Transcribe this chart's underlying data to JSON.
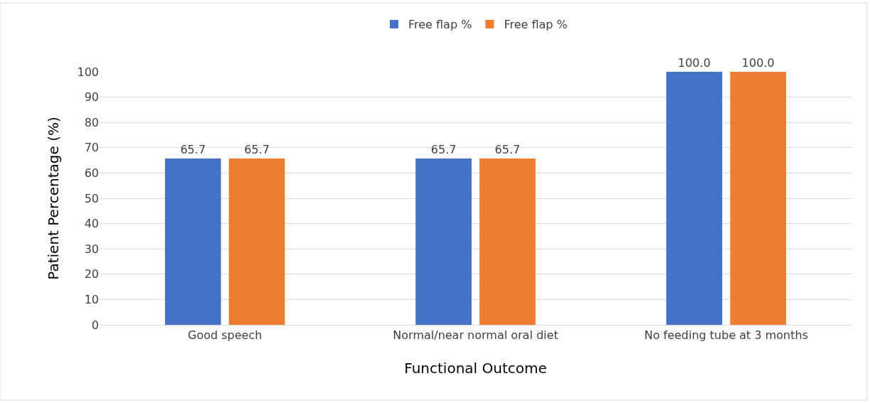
{
  "chart_data": {
    "type": "bar",
    "categories": [
      "Good speech",
      "Normal/near normal oral diet",
      "No feeding tube at 3 months"
    ],
    "series": [
      {
        "name": "Free flap %",
        "color": "#4472c4",
        "values": [
          65.7,
          65.7,
          100
        ],
        "value_labels": [
          "65.7",
          "65.7",
          "100.0"
        ]
      },
      {
        "name": "Free flap %",
        "color": "#ed7d31",
        "values": [
          65.7,
          65.7,
          100
        ],
        "value_labels": [
          "65.7",
          "65.7",
          "100.0"
        ]
      }
    ],
    "xlabel": "Functional Outcome",
    "ylabel": "Patient Percentage (%)",
    "ylim": [
      0,
      100
    ],
    "yticks": [
      0,
      10,
      20,
      30,
      40,
      50,
      60,
      70,
      80,
      90,
      100
    ],
    "grid": "y",
    "legend": "top"
  }
}
